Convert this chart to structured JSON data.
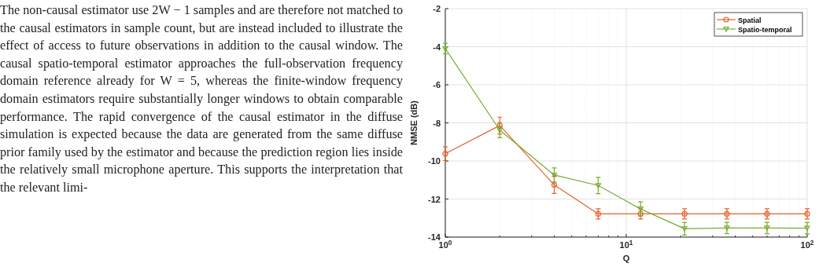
{
  "chart_data": {
    "type": "line",
    "xlabel": "Q",
    "ylabel": "NMSE (dB)",
    "log": "x",
    "grid": true,
    "legend": "top right",
    "xlim": [
      1,
      100
    ],
    "xticks": [
      {
        "value": 1,
        "label": "10$^{0}$"
      },
      {
        "value": 10,
        "label": "10$^{1}$"
      },
      {
        "value": 100,
        "label": "10$^{2}$"
      }
    ],
    "ylim": [
      -14,
      -2
    ],
    "yticks": [
      -14,
      -12,
      -10,
      -8,
      -6,
      -4,
      -2
    ],
    "x": [
      1,
      2,
      4,
      7,
      12,
      21,
      36,
      60,
      100
    ],
    "series": [
      {
        "name": "Spatial",
        "color": "#e8602c",
        "marker": "circle",
        "values": [
          -9.62,
          -8.14,
          -11.26,
          -12.78,
          -12.78,
          -12.78,
          -12.78,
          -12.78,
          -12.78
        ],
        "errors": [
          0.36,
          0.44,
          0.45,
          0.27,
          0.27,
          0.27,
          0.27,
          0.27,
          0.27
        ]
      },
      {
        "name": "Spatio-temporal",
        "color": "#77ac30",
        "marker": "triangle",
        "values": [
          -4.1,
          -8.38,
          -10.74,
          -11.29,
          -12.52,
          -13.56,
          -13.52,
          -13.52,
          -13.53
        ],
        "errors": [
          0.28,
          0.4,
          0.37,
          0.43,
          0.37,
          0.33,
          0.3,
          0.3,
          0.3
        ]
      }
    ],
    "annotations": [
      "The non-causal estimator use 2W − 1 samples and are therefore not matched to the causal estimators in sample count, but are instead included to illustrate the effect of access to future observations in addition to the causal window. The causal spatio-temporal estimator approaches the full-observation frequency domain reference already for W = 5, whereas the finite-window frequency domain estimators require substantially longer windows to obtain comparable performance. The rapid convergence of the causal estimator in the diffuse simulation is expected because the data are generated from the same diffuse prior family used by the estimator and because the prediction region lies inside the relatively small microphone aperture. This supports the interpretation that the relevant limi-"
    ]
  }
}
